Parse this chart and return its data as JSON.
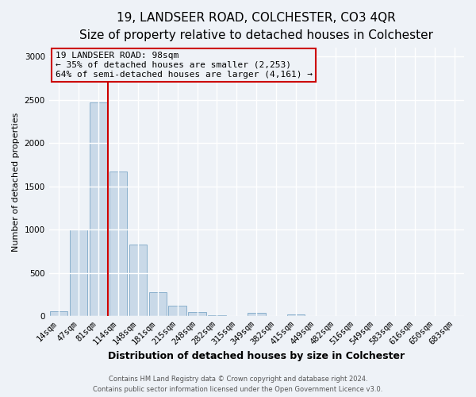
{
  "title": "19, LANDSEER ROAD, COLCHESTER, CO3 4QR",
  "subtitle": "Size of property relative to detached houses in Colchester",
  "xlabel": "Distribution of detached houses by size in Colchester",
  "ylabel": "Number of detached properties",
  "footer_line1": "Contains HM Land Registry data © Crown copyright and database right 2024.",
  "footer_line2": "Contains public sector information licensed under the Open Government Licence v3.0.",
  "bar_labels": [
    "14sqm",
    "47sqm",
    "81sqm",
    "114sqm",
    "148sqm",
    "181sqm",
    "215sqm",
    "248sqm",
    "282sqm",
    "315sqm",
    "349sqm",
    "382sqm",
    "415sqm",
    "449sqm",
    "482sqm",
    "516sqm",
    "549sqm",
    "583sqm",
    "616sqm",
    "650sqm",
    "683sqm"
  ],
  "bar_values": [
    55,
    1000,
    2470,
    1670,
    830,
    275,
    120,
    45,
    10,
    0,
    35,
    0,
    15,
    0,
    0,
    0,
    0,
    0,
    0,
    0,
    0
  ],
  "bar_color": "#c9d9e8",
  "bar_edgecolor": "#8ab0cc",
  "vline_x": 2.5,
  "vline_color": "#cc0000",
  "annotation_title": "19 LANDSEER ROAD: 98sqm",
  "annotation_line1": "← 35% of detached houses are smaller (2,253)",
  "annotation_line2": "64% of semi-detached houses are larger (4,161) →",
  "annotation_box_edgecolor": "#cc0000",
  "ylim": [
    0,
    3100
  ],
  "yticks": [
    0,
    500,
    1000,
    1500,
    2000,
    2500,
    3000
  ],
  "background_color": "#eef2f7",
  "grid_color": "#ffffff",
  "title_fontsize": 11,
  "subtitle_fontsize": 9.5,
  "xlabel_fontsize": 9,
  "ylabel_fontsize": 8,
  "tick_fontsize": 7.5,
  "annotation_fontsize": 8,
  "footer_fontsize": 6
}
